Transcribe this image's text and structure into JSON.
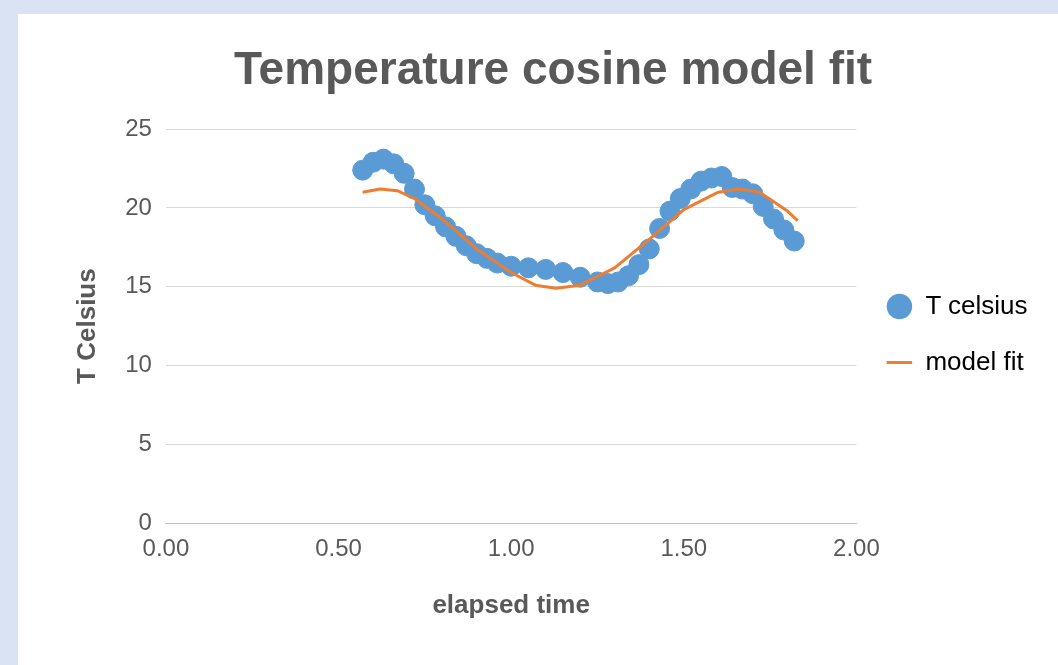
{
  "chart_data": {
    "type": "scatter",
    "title": "Temperature cosine model fit",
    "xlabel": "elapsed time",
    "ylabel": "T Celsius",
    "xlim": [
      0,
      2
    ],
    "xticks": [
      {
        "value": 0,
        "label": "0.00"
      },
      {
        "value": 0.5,
        "label": "0.50"
      },
      {
        "value": 1,
        "label": "1.00"
      },
      {
        "value": 1.5,
        "label": "1.50"
      },
      {
        "value": 2,
        "label": "2.00"
      }
    ],
    "ylim": [
      0,
      25
    ],
    "yticks": [
      0,
      5,
      10,
      15,
      20,
      25
    ],
    "grid": "y",
    "legend": "right",
    "marker": "circle",
    "series": [
      {
        "name": "T celsius",
        "color": "#5b9bd5",
        "x": [
          0.57,
          0.6,
          0.63,
          0.66,
          0.69,
          0.72,
          0.75,
          0.78,
          0.81,
          0.84,
          0.87,
          0.9,
          0.93,
          0.96,
          1.0,
          1.05,
          1.1,
          1.15,
          1.2,
          1.25,
          1.28,
          1.31,
          1.34,
          1.37,
          1.4,
          1.43,
          1.46,
          1.49,
          1.52,
          1.55,
          1.58,
          1.61,
          1.64,
          1.67,
          1.7,
          1.73,
          1.76,
          1.79,
          1.82
        ],
        "values": [
          22.4,
          22.9,
          23.1,
          22.8,
          22.2,
          21.2,
          20.2,
          19.5,
          18.8,
          18.2,
          17.6,
          17.1,
          16.8,
          16.5,
          16.3,
          16.2,
          16.1,
          15.9,
          15.6,
          15.3,
          15.2,
          15.3,
          15.7,
          16.4,
          17.4,
          18.7,
          19.8,
          20.6,
          21.2,
          21.7,
          21.9,
          22.0,
          21.3,
          21.2,
          20.9,
          20.1,
          19.3,
          18.6,
          17.9
        ]
      },
      {
        "name": "model fit",
        "type": "line",
        "color": "#ed7d31",
        "marker": "none",
        "x": [
          0.57,
          0.62,
          0.67,
          0.72,
          0.8,
          0.9,
          1.0,
          1.07,
          1.13,
          1.2,
          1.3,
          1.4,
          1.5,
          1.6,
          1.66,
          1.72,
          1.8,
          1.83
        ],
        "values": [
          21.0,
          21.2,
          21.1,
          20.6,
          19.3,
          17.4,
          15.9,
          15.1,
          14.9,
          15.1,
          16.2,
          18.0,
          19.9,
          21.0,
          21.2,
          21.0,
          19.8,
          19.2
        ]
      }
    ]
  }
}
